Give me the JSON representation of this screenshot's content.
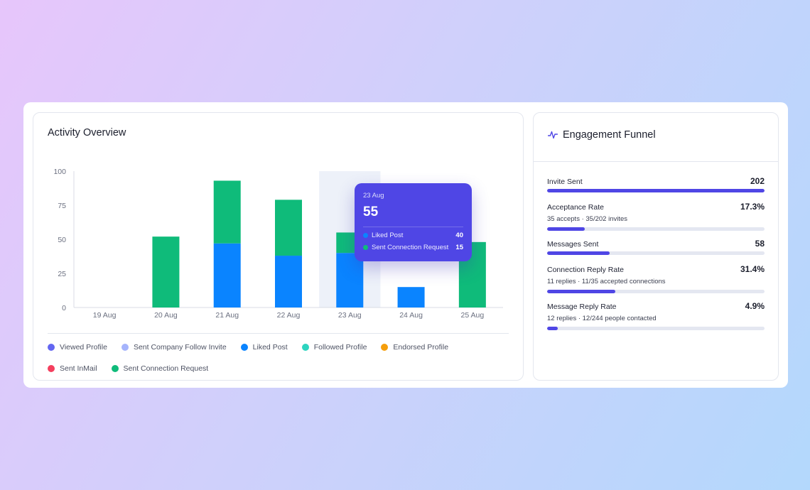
{
  "activity": {
    "title": "Activity Overview"
  },
  "chart_data": {
    "type": "bar",
    "stacked": true,
    "categories": [
      "19 Aug",
      "20 Aug",
      "21 Aug",
      "22 Aug",
      "23 Aug",
      "24 Aug",
      "25 Aug"
    ],
    "series": [
      {
        "name": "Liked Post",
        "color": "#0a84ff",
        "values": [
          0,
          0,
          47,
          38,
          40,
          15,
          0
        ]
      },
      {
        "name": "Sent Connection Request",
        "color": "#0fbb7a",
        "values": [
          0,
          52,
          46,
          41,
          15,
          0,
          48
        ]
      }
    ],
    "yticks": [
      "0",
      "25",
      "50",
      "75",
      "100"
    ],
    "ylim": [
      0,
      100
    ],
    "highlight_category": "23 Aug",
    "grid": false
  },
  "legend": [
    {
      "label": "Viewed Profile",
      "color": "#6366f1"
    },
    {
      "label": "Sent Company Follow Invite",
      "color": "#a5b4fc"
    },
    {
      "label": "Liked Post",
      "color": "#0a84ff"
    },
    {
      "label": "Followed Profile",
      "color": "#2dd4bf"
    },
    {
      "label": "Endorsed Profile",
      "color": "#f59e0b"
    },
    {
      "label": "Sent InMail",
      "color": "#f43f5e"
    },
    {
      "label": "Sent Connection Request",
      "color": "#0fbb7a"
    }
  ],
  "tooltip": {
    "date": "23 Aug",
    "total": "55",
    "rows": [
      {
        "label": "Liked Post",
        "value": "40",
        "color": "#0a84ff"
      },
      {
        "label": "Sent Connection Request",
        "value": "15",
        "color": "#0fbb7a"
      }
    ]
  },
  "funnel": {
    "title": "Engagement Funnel",
    "icon": "pulse-icon",
    "accent": "#4f46e5",
    "metrics": [
      {
        "label": "Invite Sent",
        "value": "202",
        "sub": "",
        "fill": 1.0
      },
      {
        "label": "Acceptance Rate",
        "value": "17.3%",
        "sub": "35 accepts · 35/202 invites",
        "fill": 0.173
      },
      {
        "label": "Messages Sent",
        "value": "58",
        "sub": "",
        "fill": 0.287
      },
      {
        "label": "Connection Reply Rate",
        "value": "31.4%",
        "sub": "11 replies · 11/35 accepted connections",
        "fill": 0.314
      },
      {
        "label": "Message Reply Rate",
        "value": "4.9%",
        "sub": "12 replies · 12/244 people contacted",
        "fill": 0.049
      }
    ]
  }
}
